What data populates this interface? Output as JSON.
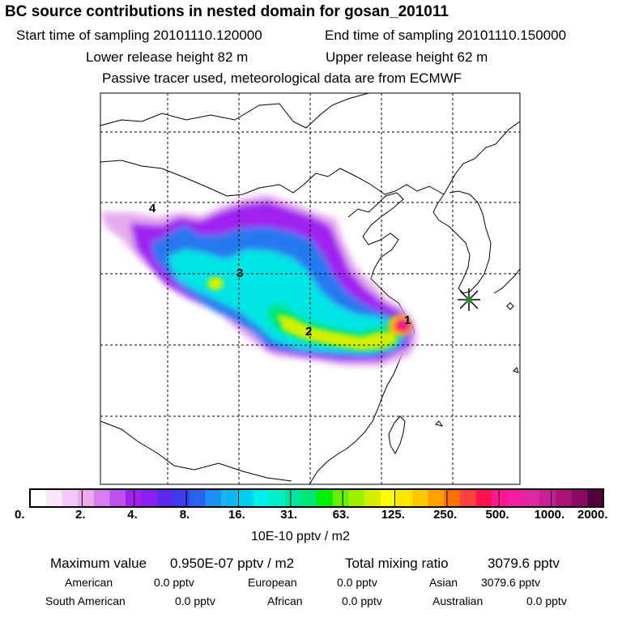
{
  "header": {
    "title": "BC  source contributions in nested domain for gosan_201011",
    "start_time": "Start time of sampling 20101110.120000",
    "end_time": "End time of sampling 20101110.150000",
    "lower_height": "Lower release height   82 m",
    "upper_height": "Upper release height   62 m",
    "tracer_note": "Passive tracer used, meteorological data are from ECMWF"
  },
  "map": {
    "markers": [
      "4",
      "3",
      "2",
      "1"
    ],
    "receptor_color": "#1a8f1a"
  },
  "colorbar": {
    "colors": [
      "#ffffff",
      "#fae6fa",
      "#f5c8f5",
      "#eeaaee",
      "#d87cee",
      "#c050ee",
      "#a020f0",
      "#8c1ef0",
      "#5a28ee",
      "#3c3cee",
      "#2864f0",
      "#1e90f0",
      "#14b4f0",
      "#00d0f0",
      "#00f0f0",
      "#00f0c8",
      "#00e6a0",
      "#00e678",
      "#00f000",
      "#64f000",
      "#a0f000",
      "#d2f000",
      "#ffff00",
      "#ffe600",
      "#ffc800",
      "#ffa000",
      "#ff7000",
      "#ff4040",
      "#ff1050",
      "#ff1496",
      "#f01ea0",
      "#dc28a0",
      "#c81e96",
      "#aa1478",
      "#8c0a64",
      "#50003c"
    ],
    "tick_labels": [
      "0.",
      "2.",
      "4.",
      "8.",
      "16.",
      "31.",
      "63.",
      "125.",
      "250.",
      "500.",
      "1000.",
      "2000."
    ],
    "unit": "10E-10 pptv / m2"
  },
  "summary": {
    "max_label": "Maximum value",
    "max_value": "0.950E-07 pptv / m2",
    "total_label": "Total mixing ratio",
    "total_value": "3079.6 pptv",
    "american_label": "American",
    "american_value": "0.0 pptv",
    "european_label": "European",
    "european_value": "0.0 pptv",
    "asian_label": "Asian",
    "asian_value": "3079.6 pptv",
    "south_american_label": "South American",
    "south_american_value": "0.0 pptv",
    "african_label": "African",
    "african_value": "0.0 pptv",
    "australian_label": "Australian",
    "australian_value": "0.0 pptv"
  }
}
